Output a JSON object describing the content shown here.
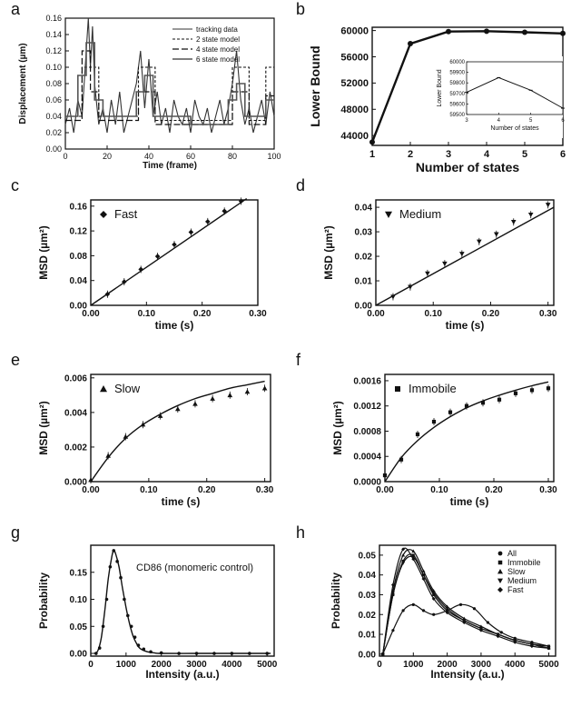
{
  "chart_data": [
    {
      "panel": "a",
      "type": "line",
      "xlabel": "Time (frame)",
      "ylabel": "Displacement (µm)",
      "xlim": [
        0,
        100
      ],
      "ylim": [
        0,
        0.16
      ],
      "xticks": [
        "0",
        "20",
        "40",
        "60",
        "80",
        "100"
      ],
      "yticks": [
        "0.00",
        "0.02",
        "0.04",
        "0.06",
        "0.08",
        "0.10",
        "0.12",
        "0.14",
        "0.16"
      ],
      "legend": [
        "tracking data",
        "2 state model",
        "4 state model",
        "6 state model"
      ],
      "series": [
        {
          "name": "tracking data",
          "x": [
            0,
            2,
            4,
            6,
            8,
            10,
            11,
            12,
            13,
            14,
            16,
            18,
            20,
            22,
            24,
            26,
            28,
            30,
            32,
            34,
            36,
            38,
            40,
            42,
            44,
            46,
            48,
            50,
            52,
            54,
            56,
            58,
            60,
            62,
            64,
            66,
            68,
            70,
            72,
            74,
            76,
            78,
            80,
            82,
            84,
            86,
            88,
            90,
            92,
            94,
            96,
            98,
            100
          ],
          "y": [
            0.03,
            0.05,
            0.02,
            0.06,
            0.04,
            0.12,
            0.16,
            0.1,
            0.15,
            0.08,
            0.03,
            0.05,
            0.02,
            0.06,
            0.03,
            0.07,
            0.02,
            0.04,
            0.06,
            0.08,
            0.12,
            0.05,
            0.11,
            0.04,
            0.07,
            0.03,
            0.05,
            0.02,
            0.06,
            0.04,
            0.03,
            0.05,
            0.02,
            0.06,
            0.04,
            0.03,
            0.05,
            0.02,
            0.04,
            0.06,
            0.03,
            0.05,
            0.08,
            0.12,
            0.06,
            0.03,
            0.05,
            0.02,
            0.04,
            0.06,
            0.03,
            0.07,
            0.04
          ]
        },
        {
          "name": "2 state model",
          "x": [
            0,
            8,
            8,
            16,
            16,
            35,
            35,
            43,
            43,
            80,
            80,
            88,
            88,
            96,
            96,
            100
          ],
          "y": [
            0.04,
            0.04,
            0.1,
            0.1,
            0.04,
            0.04,
            0.1,
            0.1,
            0.035,
            0.035,
            0.1,
            0.1,
            0.035,
            0.035,
            0.1,
            0.1
          ]
        },
        {
          "name": "4 state model",
          "x": [
            0,
            8,
            8,
            12,
            12,
            16,
            16,
            35,
            35,
            43,
            43,
            80,
            80,
            88,
            88,
            96,
            96,
            100
          ],
          "y": [
            0.035,
            0.035,
            0.12,
            0.12,
            0.07,
            0.07,
            0.035,
            0.035,
            0.07,
            0.07,
            0.03,
            0.03,
            0.07,
            0.07,
            0.03,
            0.03,
            0.065,
            0.065
          ]
        },
        {
          "name": "6 state model",
          "x": [
            0,
            6,
            6,
            10,
            10,
            14,
            14,
            18,
            18,
            34,
            34,
            38,
            38,
            42,
            42,
            60,
            60,
            78,
            78,
            82,
            82,
            86,
            86,
            96,
            96,
            100
          ],
          "y": [
            0.04,
            0.04,
            0.09,
            0.09,
            0.13,
            0.13,
            0.06,
            0.06,
            0.04,
            0.04,
            0.07,
            0.07,
            0.09,
            0.09,
            0.04,
            0.04,
            0.03,
            0.03,
            0.06,
            0.06,
            0.08,
            0.08,
            0.04,
            0.04,
            0.06,
            0.06
          ]
        }
      ]
    },
    {
      "panel": "b",
      "type": "line",
      "xlabel": "Number of states",
      "ylabel": "Lower Bound",
      "xlim": [
        1,
        6
      ],
      "ylim": [
        42500,
        60500
      ],
      "xticks": [
        "1",
        "2",
        "3",
        "4",
        "5",
        "6"
      ],
      "yticks": [
        "44000",
        "48000",
        "52000",
        "56000",
        "60000"
      ],
      "series": [
        {
          "x": [
            1,
            2,
            3,
            4,
            5,
            6
          ],
          "y": [
            43000,
            58000,
            59850,
            59900,
            59740,
            59560
          ]
        }
      ],
      "inset": {
        "xlabel": "Number of states",
        "ylabel": "Lower Bound",
        "xlim": [
          3,
          6
        ],
        "ylim": [
          59500,
          60000
        ],
        "xticks": [
          "3",
          "4",
          "5",
          "6"
        ],
        "yticks": [
          "59500",
          "59600",
          "59700",
          "59800",
          "59900",
          "60000"
        ],
        "series": [
          {
            "x": [
              3,
              4,
              5,
              6
            ],
            "y": [
              59710,
              59850,
              59730,
              59560
            ]
          }
        ]
      }
    },
    {
      "panel": "c",
      "type": "scatter",
      "xlabel": "time (s)",
      "ylabel": "MSD (µm²)",
      "legend": "Fast",
      "marker": "diamond",
      "xlim": [
        0,
        0.3
      ],
      "ylim": [
        0,
        0.17
      ],
      "xticks": [
        "0.00",
        "0.10",
        "0.20",
        "0.30"
      ],
      "yticks": [
        "0.00",
        "0.04",
        "0.08",
        "0.12",
        "0.16"
      ],
      "points": {
        "x": [
          0.03,
          0.06,
          0.09,
          0.12,
          0.15,
          0.18,
          0.21,
          0.24,
          0.27
        ],
        "y": [
          0.018,
          0.038,
          0.058,
          0.079,
          0.098,
          0.118,
          0.135,
          0.152,
          0.168
        ]
      },
      "fit": {
        "x": [
          0,
          0.28
        ],
        "y": [
          0,
          0.172
        ]
      }
    },
    {
      "panel": "d",
      "type": "scatter",
      "xlabel": "time (s)",
      "ylabel": "MSD (µm²)",
      "legend": "Medium",
      "marker": "triangle-down",
      "xlim": [
        0,
        0.31
      ],
      "ylim": [
        0,
        0.043
      ],
      "xticks": [
        "0.00",
        "0.10",
        "0.20",
        "0.30"
      ],
      "yticks": [
        "0.00",
        "0.01",
        "0.02",
        "0.03",
        "0.04"
      ],
      "points": {
        "x": [
          0.03,
          0.06,
          0.09,
          0.12,
          0.15,
          0.18,
          0.21,
          0.24,
          0.27,
          0.3
        ],
        "y": [
          0.0035,
          0.0075,
          0.013,
          0.017,
          0.021,
          0.026,
          0.029,
          0.034,
          0.037,
          0.041
        ]
      },
      "fit": {
        "x": [
          0,
          0.31
        ],
        "y": [
          0,
          0.04
        ]
      }
    },
    {
      "panel": "e",
      "type": "scatter",
      "xlabel": "time (s)",
      "ylabel": "MSD (µm²)",
      "legend": "Slow",
      "marker": "triangle",
      "xlim": [
        0,
        0.31
      ],
      "ylim": [
        0,
        0.0062
      ],
      "xticks": [
        "0.00",
        "0.10",
        "0.20",
        "0.30"
      ],
      "yticks": [
        "0.000",
        "0.002",
        "0.004",
        "0.006"
      ],
      "points": {
        "x": [
          0,
          0.03,
          0.06,
          0.09,
          0.12,
          0.15,
          0.18,
          0.21,
          0.24,
          0.27,
          0.3
        ],
        "y": [
          0.0001,
          0.0015,
          0.0026,
          0.0033,
          0.0038,
          0.0042,
          0.0045,
          0.0048,
          0.005,
          0.0052,
          0.0054
        ]
      },
      "fit": {
        "x": [
          0,
          0.03,
          0.06,
          0.09,
          0.12,
          0.15,
          0.18,
          0.21,
          0.24,
          0.27,
          0.3
        ],
        "y": [
          0,
          0.0014,
          0.0025,
          0.0033,
          0.0039,
          0.0044,
          0.0048,
          0.0051,
          0.0054,
          0.0056,
          0.0058
        ]
      }
    },
    {
      "panel": "f",
      "type": "scatter",
      "xlabel": "time (s)",
      "ylabel": "MSD (µm²)",
      "legend": "Immobile",
      "marker": "square",
      "xlim": [
        0,
        0.31
      ],
      "ylim": [
        0,
        0.0017
      ],
      "xticks": [
        "0.00",
        "0.10",
        "0.20",
        "0.30"
      ],
      "yticks": [
        "0.0000",
        "0.0004",
        "0.0008",
        "0.0012",
        "0.0016"
      ],
      "points": {
        "x": [
          0,
          0.03,
          0.06,
          0.09,
          0.12,
          0.15,
          0.18,
          0.21,
          0.24,
          0.27,
          0.3
        ],
        "y": [
          0.0001,
          0.00035,
          0.00075,
          0.00095,
          0.0011,
          0.0012,
          0.00125,
          0.0013,
          0.0014,
          0.00145,
          0.00148
        ]
      },
      "fit": {
        "x": [
          0,
          0.03,
          0.06,
          0.09,
          0.12,
          0.15,
          0.18,
          0.21,
          0.24,
          0.27,
          0.3
        ],
        "y": [
          0,
          0.00038,
          0.00065,
          0.00086,
          0.00103,
          0.00117,
          0.00128,
          0.00137,
          0.00145,
          0.00152,
          0.00158
        ]
      }
    },
    {
      "panel": "g",
      "type": "line",
      "xlabel": "Intensity (a.u.)",
      "ylabel": "Probability",
      "annotation": "CD86 (monomeric control)",
      "xlim": [
        0,
        5200
      ],
      "ylim": [
        -0.005,
        0.2
      ],
      "xticks": [
        "0",
        "1000",
        "2000",
        "3000",
        "4000",
        "5000"
      ],
      "yticks": [
        "0.00",
        "0.05",
        "0.10",
        "0.15"
      ],
      "points": {
        "x": [
          150,
          250,
          350,
          450,
          550,
          650,
          750,
          850,
          950,
          1050,
          1150,
          1250,
          1350,
          1500,
          1700,
          2000,
          2500,
          3000,
          3500,
          4000,
          4500,
          5000
        ],
        "y": [
          0.0,
          0.01,
          0.05,
          0.1,
          0.16,
          0.19,
          0.17,
          0.14,
          0.1,
          0.07,
          0.05,
          0.03,
          0.015,
          0.008,
          0.003,
          0.001,
          0.0,
          0.0,
          0.0,
          0.0,
          0.0,
          0.0
        ]
      },
      "fit": {
        "x": [
          100,
          200,
          300,
          400,
          500,
          600,
          650,
          700,
          800,
          900,
          1000,
          1100,
          1200,
          1300,
          1400,
          1600,
          1800,
          2000,
          3000,
          4000,
          5100
        ],
        "y": [
          0.0,
          0.005,
          0.03,
          0.08,
          0.14,
          0.18,
          0.19,
          0.185,
          0.16,
          0.12,
          0.085,
          0.055,
          0.032,
          0.018,
          0.009,
          0.003,
          0.001,
          0.0,
          0.0,
          0.0,
          0.0
        ]
      }
    },
    {
      "panel": "h",
      "type": "line",
      "xlabel": "Intensity (a.u.)",
      "ylabel": "Probability",
      "xlim": [
        0,
        5200
      ],
      "ylim": [
        -0.001,
        0.055
      ],
      "xticks": [
        "0",
        "1000",
        "2000",
        "3000",
        "4000",
        "5000"
      ],
      "yticks": [
        "0.00",
        "0.01",
        "0.02",
        "0.03",
        "0.04",
        "0.05"
      ],
      "legend": [
        "All",
        "Immobile",
        "Slow",
        "Medium",
        "Fast"
      ],
      "series": [
        {
          "name": "All",
          "marker": "circle",
          "x": [
            100,
            400,
            700,
            1000,
            1300,
            1600,
            2000,
            2400,
            2800,
            3200,
            3600,
            4000,
            4500,
            5000
          ],
          "y": [
            0.0,
            0.012,
            0.022,
            0.025,
            0.022,
            0.02,
            0.022,
            0.025,
            0.023,
            0.016,
            0.011,
            0.008,
            0.006,
            0.004
          ]
        },
        {
          "name": "Immobile",
          "marker": "square",
          "x": [
            100,
            400,
            700,
            1000,
            1300,
            1600,
            2000,
            2500,
            3000,
            3500,
            4000,
            4500,
            5000
          ],
          "y": [
            0.0,
            0.03,
            0.047,
            0.05,
            0.04,
            0.03,
            0.022,
            0.017,
            0.013,
            0.01,
            0.007,
            0.005,
            0.004
          ]
        },
        {
          "name": "Slow",
          "marker": "triangle",
          "x": [
            100,
            400,
            700,
            1000,
            1300,
            1600,
            2000,
            2500,
            3000,
            3500,
            4000,
            4500,
            5000
          ],
          "y": [
            0.0,
            0.032,
            0.05,
            0.052,
            0.042,
            0.032,
            0.024,
            0.018,
            0.014,
            0.01,
            0.007,
            0.005,
            0.003
          ]
        },
        {
          "name": "Medium",
          "marker": "triangle-down",
          "x": [
            100,
            400,
            700,
            1000,
            1300,
            1600,
            2000,
            2500,
            3000,
            3500,
            4000,
            4500,
            5000
          ],
          "y": [
            0.0,
            0.03,
            0.046,
            0.049,
            0.04,
            0.031,
            0.023,
            0.017,
            0.013,
            0.01,
            0.007,
            0.005,
            0.003
          ]
        },
        {
          "name": "Fast",
          "marker": "diamond",
          "x": [
            100,
            400,
            700,
            1000,
            1300,
            1600,
            2000,
            2500,
            3000,
            3500,
            4000,
            4500,
            5000
          ],
          "y": [
            0.0,
            0.035,
            0.053,
            0.048,
            0.038,
            0.028,
            0.021,
            0.016,
            0.012,
            0.009,
            0.006,
            0.004,
            0.003
          ]
        }
      ]
    }
  ]
}
